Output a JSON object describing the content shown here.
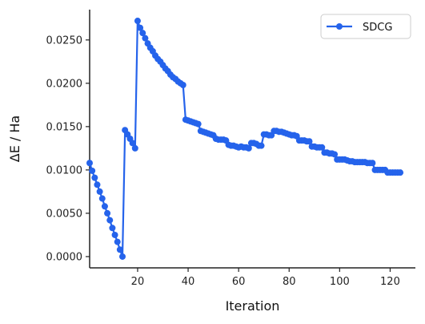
{
  "chart_data": {
    "type": "line",
    "xlabel": "Iteration",
    "ylabel": "ΔE / Ha",
    "xlim": [
      1,
      130
    ],
    "ylim": [
      -0.0013,
      0.0285
    ],
    "xticks": [
      20,
      40,
      60,
      80,
      100,
      120
    ],
    "yticks": [
      0.0,
      0.005,
      0.01,
      0.015,
      0.02,
      0.025
    ],
    "ytick_labels": [
      "0.0000",
      "0.0050",
      "0.0100",
      "0.0150",
      "0.0200",
      "0.0250"
    ],
    "grid": false,
    "legend_position": "top-right",
    "color": "#2563EB",
    "series": [
      {
        "name": "SDCG",
        "x": [
          1,
          2,
          3,
          4,
          5,
          6,
          7,
          8,
          9,
          10,
          11,
          12,
          13,
          14,
          15,
          16,
          17,
          18,
          19,
          20,
          21,
          22,
          23,
          24,
          25,
          26,
          27,
          28,
          29,
          30,
          31,
          32,
          33,
          34,
          35,
          36,
          37,
          38,
          39,
          40,
          41,
          42,
          43,
          44,
          45,
          46,
          47,
          48,
          49,
          50,
          51,
          52,
          53,
          54,
          55,
          56,
          57,
          58,
          59,
          60,
          61,
          62,
          63,
          64,
          65,
          66,
          67,
          68,
          69,
          70,
          71,
          72,
          73,
          74,
          75,
          76,
          77,
          78,
          79,
          80,
          81,
          82,
          83,
          84,
          85,
          86,
          87,
          88,
          89,
          90,
          91,
          92,
          93,
          94,
          95,
          96,
          97,
          98,
          99,
          100,
          101,
          102,
          103,
          104,
          105,
          106,
          107,
          108,
          109,
          110,
          111,
          112,
          113,
          114,
          115,
          116,
          117,
          118,
          119,
          120,
          121,
          122,
          123,
          124
        ],
        "y": [
          0.0108,
          0.0099,
          0.0091,
          0.0083,
          0.0075,
          0.0067,
          0.0058,
          0.005,
          0.0042,
          0.0033,
          0.0025,
          0.0017,
          0.0008,
          0.0,
          0.0146,
          0.0141,
          0.0136,
          0.0131,
          0.0125,
          0.0272,
          0.0264,
          0.0258,
          0.0252,
          0.0246,
          0.0241,
          0.0237,
          0.0232,
          0.0228,
          0.0225,
          0.0221,
          0.0217,
          0.0214,
          0.021,
          0.0207,
          0.0205,
          0.0202,
          0.02,
          0.0198,
          0.0158,
          0.0157,
          0.0156,
          0.0155,
          0.0154,
          0.0153,
          0.0145,
          0.0144,
          0.0143,
          0.0142,
          0.0141,
          0.014,
          0.0136,
          0.0135,
          0.0135,
          0.0135,
          0.0134,
          0.0129,
          0.0128,
          0.0128,
          0.0127,
          0.0126,
          0.0127,
          0.0126,
          0.0126,
          0.0125,
          0.0131,
          0.0131,
          0.013,
          0.0128,
          0.0128,
          0.0141,
          0.0141,
          0.014,
          0.014,
          0.0145,
          0.0145,
          0.0144,
          0.0144,
          0.0143,
          0.0142,
          0.0141,
          0.014,
          0.014,
          0.0139,
          0.0134,
          0.0134,
          0.0134,
          0.0133,
          0.0133,
          0.0127,
          0.0127,
          0.0126,
          0.0126,
          0.0126,
          0.012,
          0.012,
          0.0119,
          0.0119,
          0.0118,
          0.0112,
          0.0112,
          0.0112,
          0.0112,
          0.0111,
          0.011,
          0.011,
          0.0109,
          0.0109,
          0.0109,
          0.0109,
          0.0109,
          0.0108,
          0.0108,
          0.0108,
          0.01,
          0.01,
          0.01,
          0.01,
          0.01,
          0.0097,
          0.0097,
          0.0097,
          0.0097,
          0.0097,
          0.0097
        ]
      }
    ]
  }
}
